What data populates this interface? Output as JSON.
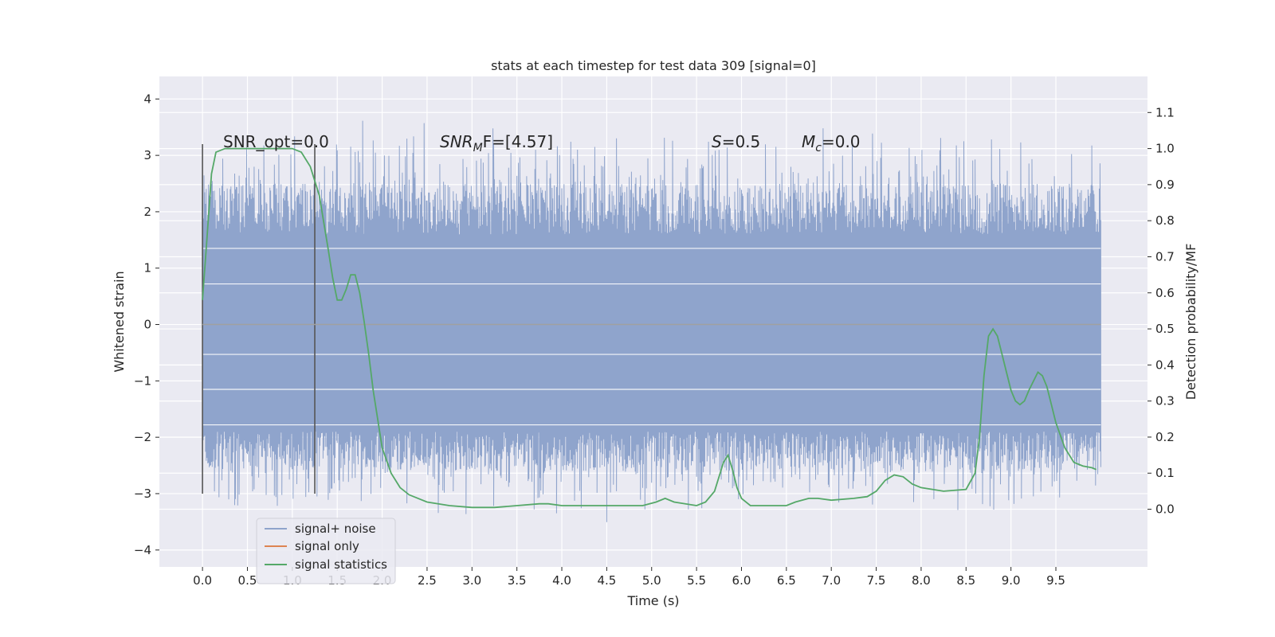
{
  "chart_data": {
    "type": "line",
    "title": "stats at each timestep for test data 309 [signal=0]",
    "xlabel": "Time (s)",
    "ylabel": "Whitened strain",
    "ylabel_right": "Detection probability/MF",
    "xlim": [
      -0.48,
      10.52
    ],
    "ylim": [
      -4.3,
      4.4
    ],
    "ylim_right": [
      -0.16,
      1.2
    ],
    "x_ticks": [
      "0.0",
      "0.5",
      "1.0",
      "1.5",
      "2.0",
      "2.5",
      "3.0",
      "3.5",
      "4.0",
      "4.5",
      "5.0",
      "5.5",
      "6.0",
      "6.5",
      "7.0",
      "7.5",
      "8.0",
      "8.5",
      "9.0",
      "9.5"
    ],
    "y_ticks": [
      "4",
      "3",
      "2",
      "1",
      "0",
      "−1",
      "−2",
      "−3",
      "−4"
    ],
    "y_ticks_right": [
      "1.1",
      "1.0",
      "0.9",
      "0.8",
      "0.7",
      "0.6",
      "0.5",
      "0.4",
      "0.3",
      "0.2",
      "0.1",
      "0.0"
    ],
    "grid": true,
    "legend_position": "lower-left",
    "annotations": {
      "snr_opt": "SNR_opt=0.0",
      "snr_mf_main": "SNR",
      "snr_mf_sub": "M",
      "snr_mf_rest": "F=[4.57]",
      "s_main": "S",
      "s_rest": "=0.5",
      "mc_main": "M",
      "mc_sub": "c",
      "mc_rest": "=0.0"
    },
    "window_markers": [
      0.0,
      1.25
    ],
    "series": [
      {
        "name": "signal+ noise",
        "color": "#8fa4cc",
        "axis": "left",
        "band": {
          "x_start": 0.0,
          "x_end": 10.0,
          "core_max": 1.35,
          "core_min": -1.8,
          "peak_max": 4.05,
          "peak_min": -3.85
        }
      },
      {
        "name": "signal only",
        "color": "#dd8452",
        "axis": "left",
        "x": [
          0.0,
          10.0
        ],
        "y": [
          0.0,
          0.0
        ]
      },
      {
        "name": "signal statistics",
        "color": "#55a868",
        "axis": "right",
        "x": [
          0.0,
          0.05,
          0.1,
          0.15,
          0.25,
          0.5,
          0.75,
          1.0,
          1.1,
          1.2,
          1.3,
          1.4,
          1.45,
          1.5,
          1.55,
          1.6,
          1.65,
          1.7,
          1.75,
          1.8,
          1.85,
          1.9,
          2.0,
          2.1,
          2.2,
          2.3,
          2.5,
          2.75,
          3.0,
          3.25,
          3.5,
          3.75,
          3.85,
          4.0,
          4.25,
          4.5,
          4.75,
          4.9,
          5.05,
          5.15,
          5.25,
          5.5,
          5.6,
          5.7,
          5.8,
          5.85,
          5.9,
          5.95,
          6.0,
          6.1,
          6.25,
          6.5,
          6.6,
          6.75,
          6.85,
          7.0,
          7.25,
          7.4,
          7.5,
          7.6,
          7.7,
          7.8,
          7.9,
          8.0,
          8.25,
          8.5,
          8.6,
          8.65,
          8.7,
          8.75,
          8.8,
          8.85,
          8.9,
          8.95,
          9.0,
          9.05,
          9.1,
          9.15,
          9.2,
          9.3,
          9.35,
          9.4,
          9.45,
          9.5,
          9.6,
          9.7,
          9.8,
          9.9,
          9.95
        ],
        "y": [
          0.58,
          0.75,
          0.93,
          0.99,
          1.0,
          1.0,
          1.0,
          1.0,
          0.99,
          0.95,
          0.87,
          0.72,
          0.64,
          0.58,
          0.58,
          0.61,
          0.65,
          0.65,
          0.6,
          0.52,
          0.43,
          0.33,
          0.17,
          0.1,
          0.06,
          0.04,
          0.02,
          0.01,
          0.005,
          0.005,
          0.01,
          0.015,
          0.015,
          0.01,
          0.01,
          0.01,
          0.01,
          0.01,
          0.02,
          0.03,
          0.02,
          0.01,
          0.02,
          0.05,
          0.13,
          0.15,
          0.11,
          0.06,
          0.03,
          0.01,
          0.01,
          0.01,
          0.02,
          0.03,
          0.03,
          0.025,
          0.03,
          0.035,
          0.05,
          0.08,
          0.095,
          0.09,
          0.07,
          0.06,
          0.05,
          0.055,
          0.1,
          0.2,
          0.37,
          0.48,
          0.5,
          0.48,
          0.43,
          0.38,
          0.33,
          0.3,
          0.29,
          0.3,
          0.33,
          0.38,
          0.37,
          0.34,
          0.29,
          0.24,
          0.17,
          0.13,
          0.12,
          0.115,
          0.11
        ]
      }
    ]
  }
}
